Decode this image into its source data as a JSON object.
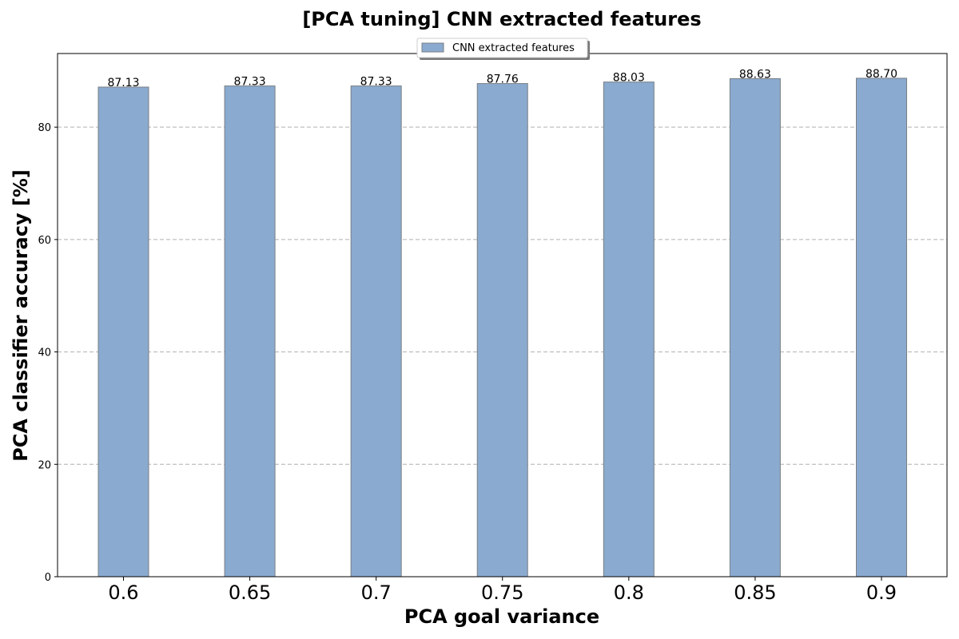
{
  "chart_data": {
    "type": "bar",
    "title": "[PCA tuning] CNN extracted features",
    "xlabel": "PCA goal variance",
    "ylabel": "PCA classifier accuracy [%]",
    "categories": [
      "0.6",
      "0.65",
      "0.7",
      "0.75",
      "0.8",
      "0.85",
      "0.9"
    ],
    "series": [
      {
        "name": "CNN extracted features",
        "values": [
          87.13,
          87.33,
          87.33,
          87.76,
          88.03,
          88.63,
          88.7
        ],
        "labels": [
          "87.13",
          "87.33",
          "87.33",
          "87.76",
          "88.03",
          "88.63",
          "88.70"
        ]
      }
    ],
    "ylim": [
      0,
      93.1
    ],
    "yticks": [
      0,
      20,
      40,
      60,
      80
    ],
    "grid": "y-dashed",
    "legend": "top-center",
    "colors": {
      "bar": "#8aaacf",
      "bar_edge": "#7a7f85",
      "grid": "#b0b0b0"
    }
  }
}
